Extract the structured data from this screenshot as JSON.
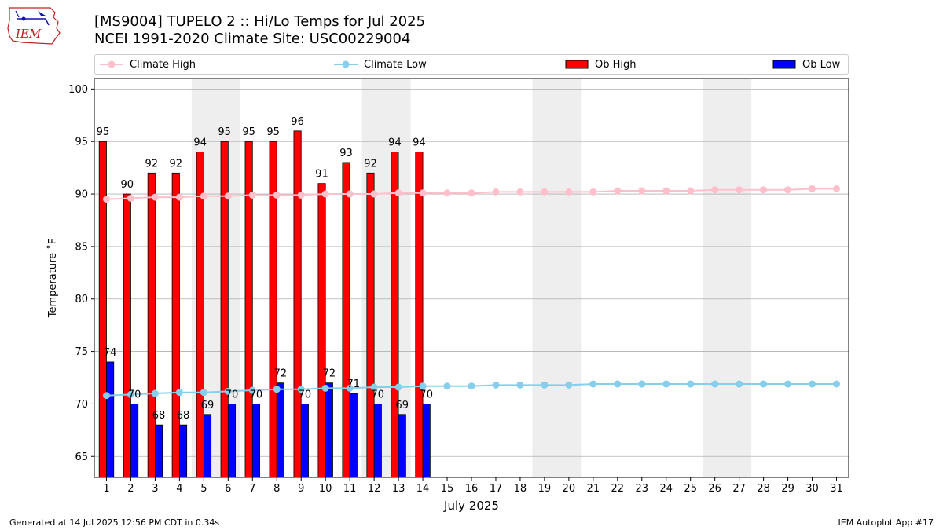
{
  "header": {
    "title_line1": "[MS9004] TUPELO 2 :: Hi/Lo Temps for Jul 2025",
    "title_line2": "NCEI 1991-2020 Climate Site: USC00229004",
    "logo_text": "IEM"
  },
  "legend": {
    "climate_high": "Climate High",
    "climate_low": "Climate Low",
    "ob_high": "Ob High",
    "ob_low": "Ob Low"
  },
  "footer": {
    "left": "Generated at 14 Jul 2025 12:56 PM CDT in 0.34s",
    "right": "IEM Autoplot App #17"
  },
  "colors": {
    "ob_high": "#ff0000",
    "ob_low": "#0000ff",
    "climate_high": "#ffc0cb",
    "climate_low": "#87ceeb",
    "weekend_shade": "#eeeeee",
    "grid": "#b0b0b0"
  },
  "chart_data": {
    "type": "bar",
    "xlabel": "July 2025",
    "ylabel": "Temperature $^\\circ$F",
    "ylabel_display": "Temperature ˚F",
    "ylim": [
      63,
      101
    ],
    "xlim": [
      0.5,
      31.5
    ],
    "yticks": [
      65,
      70,
      75,
      80,
      85,
      90,
      95,
      100
    ],
    "grid": "horizontal",
    "legend_position": "top",
    "days": [
      1,
      2,
      3,
      4,
      5,
      6,
      7,
      8,
      9,
      10,
      11,
      12,
      13,
      14,
      15,
      16,
      17,
      18,
      19,
      20,
      21,
      22,
      23,
      24,
      25,
      26,
      27,
      28,
      29,
      30,
      31
    ],
    "weekend_shaded_days": [
      [
        5,
        6
      ],
      [
        12,
        13
      ],
      [
        19,
        20
      ],
      [
        26,
        27
      ]
    ],
    "series": [
      {
        "name": "Ob High",
        "kind": "bar",
        "x": [
          1,
          2,
          3,
          4,
          5,
          6,
          7,
          8,
          9,
          10,
          11,
          12,
          13,
          14
        ],
        "values": [
          95,
          90,
          92,
          92,
          94,
          95,
          95,
          95,
          96,
          91,
          93,
          92,
          94,
          94
        ]
      },
      {
        "name": "Ob Low",
        "kind": "bar",
        "x": [
          1,
          2,
          3,
          4,
          5,
          6,
          7,
          8,
          9,
          10,
          11,
          12,
          13,
          14
        ],
        "values": [
          74,
          70,
          68,
          68,
          69,
          70,
          70,
          72,
          70,
          72,
          71,
          70,
          69,
          70
        ]
      },
      {
        "name": "Climate High",
        "kind": "line",
        "x": [
          1,
          2,
          3,
          4,
          5,
          6,
          7,
          8,
          9,
          10,
          11,
          12,
          13,
          14,
          15,
          16,
          17,
          18,
          19,
          20,
          21,
          22,
          23,
          24,
          25,
          26,
          27,
          28,
          29,
          30,
          31
        ],
        "values": [
          89.5,
          89.6,
          89.7,
          89.7,
          89.8,
          89.8,
          89.9,
          89.9,
          89.9,
          90.0,
          90.0,
          90.0,
          90.1,
          90.1,
          90.1,
          90.1,
          90.2,
          90.2,
          90.2,
          90.2,
          90.2,
          90.3,
          90.3,
          90.3,
          90.3,
          90.4,
          90.4,
          90.4,
          90.4,
          90.5,
          90.5
        ]
      },
      {
        "name": "Climate Low",
        "kind": "line",
        "x": [
          1,
          2,
          3,
          4,
          5,
          6,
          7,
          8,
          9,
          10,
          11,
          12,
          13,
          14,
          15,
          16,
          17,
          18,
          19,
          20,
          21,
          22,
          23,
          24,
          25,
          26,
          27,
          28,
          29,
          30,
          31
        ],
        "values": [
          70.8,
          70.9,
          71.0,
          71.1,
          71.1,
          71.2,
          71.3,
          71.4,
          71.4,
          71.5,
          71.5,
          71.6,
          71.6,
          71.7,
          71.7,
          71.7,
          71.8,
          71.8,
          71.8,
          71.8,
          71.9,
          71.9,
          71.9,
          71.9,
          71.9,
          71.9,
          71.9,
          71.9,
          71.9,
          71.9,
          71.9
        ]
      }
    ]
  }
}
